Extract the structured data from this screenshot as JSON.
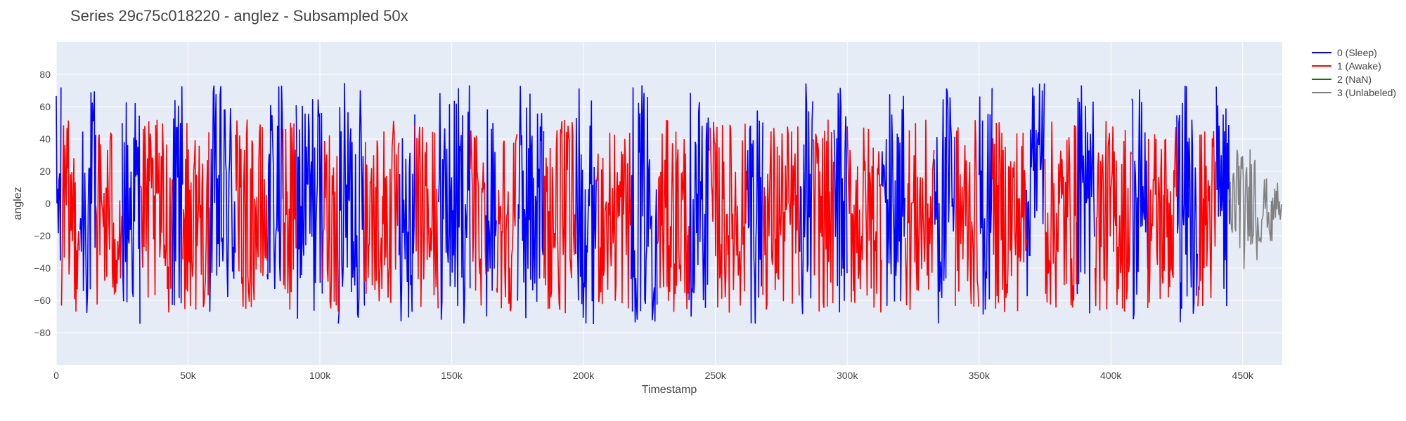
{
  "chart_data": {
    "type": "line",
    "title": "Series 29c75c018220 - anglez - Subsampled 50x",
    "xlabel": "Timestamp",
    "ylabel": "anglez",
    "xlim": [
      0,
      465000
    ],
    "ylim": [
      -100,
      100
    ],
    "x_ticks": [
      {
        "value": 0,
        "label": "0"
      },
      {
        "value": 50000,
        "label": "50k"
      },
      {
        "value": 100000,
        "label": "100k"
      },
      {
        "value": 150000,
        "label": "150k"
      },
      {
        "value": 200000,
        "label": "200k"
      },
      {
        "value": 250000,
        "label": "250k"
      },
      {
        "value": 300000,
        "label": "300k"
      },
      {
        "value": 350000,
        "label": "350k"
      },
      {
        "value": 400000,
        "label": "400k"
      },
      {
        "value": 450000,
        "label": "450k"
      }
    ],
    "y_ticks": [
      {
        "value": -80,
        "label": "−80"
      },
      {
        "value": -60,
        "label": "−60"
      },
      {
        "value": -40,
        "label": "−40"
      },
      {
        "value": -20,
        "label": "−20"
      },
      {
        "value": 0,
        "label": "0"
      },
      {
        "value": 20,
        "label": "20"
      },
      {
        "value": 40,
        "label": "40"
      },
      {
        "value": 60,
        "label": "60"
      },
      {
        "value": 80,
        "label": "80"
      }
    ],
    "grid": true,
    "legend_position": "top-right-outside",
    "series": [
      {
        "name": "0 (Sleep)",
        "color": "#0000ff",
        "segments": [
          [
            0,
            2000
          ],
          [
            9000,
            15000
          ],
          [
            25000,
            32000
          ],
          [
            44000,
            48000
          ],
          [
            58000,
            68000
          ],
          [
            80000,
            86000
          ],
          [
            91000,
            101000
          ],
          [
            107000,
            117000
          ],
          [
            130000,
            136000
          ],
          [
            145000,
            157000
          ],
          [
            163000,
            167000
          ],
          [
            175000,
            185000
          ],
          [
            197000,
            205000
          ],
          [
            218000,
            228000
          ],
          [
            240000,
            248000
          ],
          [
            262000,
            268000
          ],
          [
            282000,
            287000
          ],
          [
            295000,
            300000
          ],
          [
            313000,
            322000
          ],
          [
            333000,
            341000
          ],
          [
            350000,
            355000
          ],
          [
            368000,
            375000
          ],
          [
            387000,
            394000
          ],
          [
            408000,
            414000
          ],
          [
            425000,
            433000
          ],
          [
            440000,
            445000
          ]
        ]
      },
      {
        "name": "1 (Awake)",
        "color": "#ff0000",
        "segments": [
          [
            2000,
            9000
          ],
          [
            15000,
            25000
          ],
          [
            32000,
            44000
          ],
          [
            48000,
            58000
          ],
          [
            68000,
            80000
          ],
          [
            86000,
            91000
          ],
          [
            101000,
            107000
          ],
          [
            117000,
            130000
          ],
          [
            136000,
            145000
          ],
          [
            157000,
            163000
          ],
          [
            167000,
            175000
          ],
          [
            185000,
            197000
          ],
          [
            205000,
            218000
          ],
          [
            228000,
            240000
          ],
          [
            248000,
            262000
          ],
          [
            268000,
            282000
          ],
          [
            287000,
            295000
          ],
          [
            300000,
            313000
          ],
          [
            322000,
            333000
          ],
          [
            341000,
            350000
          ],
          [
            355000,
            368000
          ],
          [
            375000,
            387000
          ],
          [
            394000,
            408000
          ],
          [
            414000,
            425000
          ],
          [
            433000,
            440000
          ]
        ]
      },
      {
        "name": "2 (NaN)",
        "color": "#008000",
        "segments": []
      },
      {
        "name": "3 (Unlabeled)",
        "color": "#808080",
        "segments": [
          [
            445000,
            465000
          ]
        ]
      }
    ]
  }
}
